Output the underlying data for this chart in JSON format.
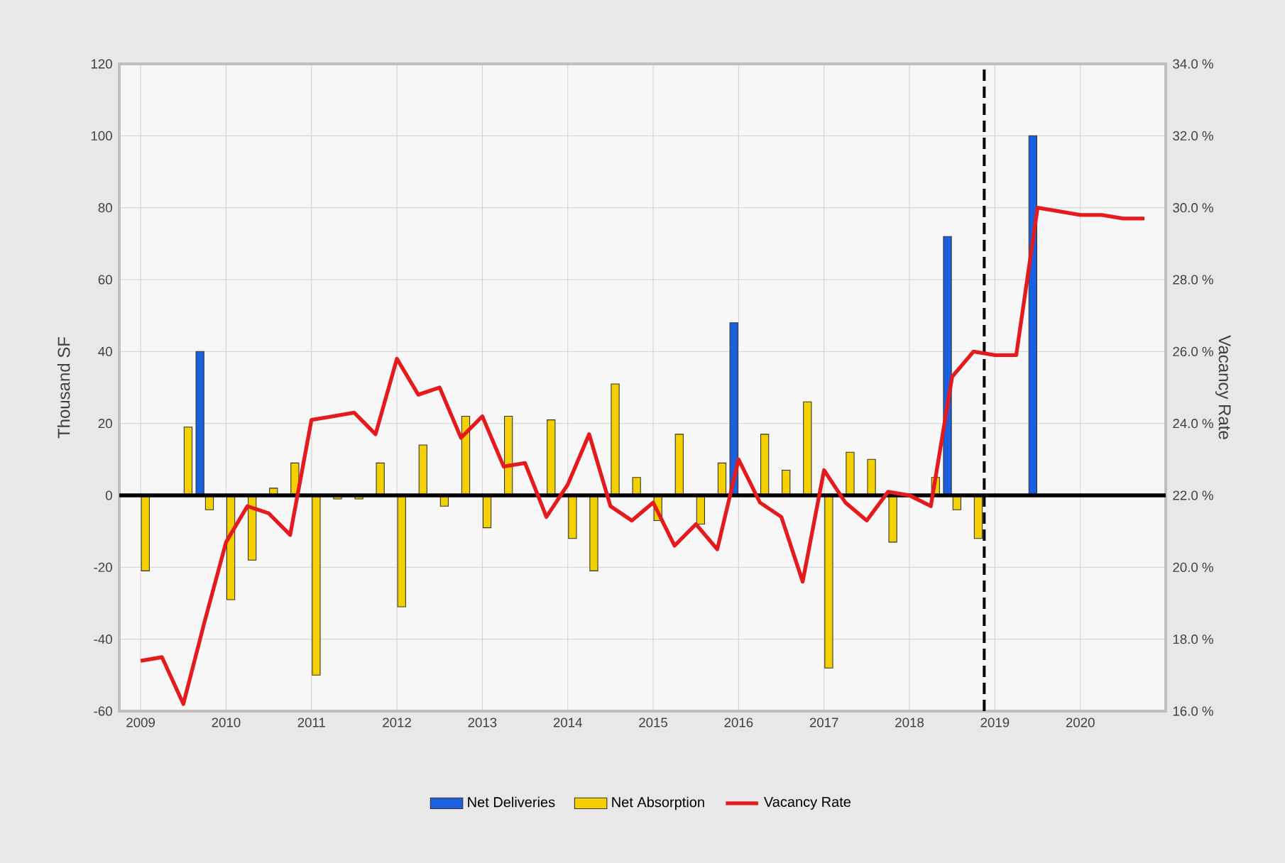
{
  "chart_data": {
    "type": "bar",
    "x": [
      2009,
      2009.25,
      2009.5,
      2009.75,
      2010,
      2010.25,
      2010.5,
      2010.75,
      2011,
      2011.25,
      2011.5,
      2011.75,
      2012,
      2012.25,
      2012.5,
      2012.75,
      2013,
      2013.25,
      2013.5,
      2013.75,
      2014,
      2014.25,
      2014.5,
      2014.75,
      2015,
      2015.25,
      2015.5,
      2015.75,
      2016,
      2016.25,
      2016.5,
      2016.75,
      2017,
      2017.25,
      2017.5,
      2017.75,
      2018,
      2018.25,
      2018.5,
      2018.75,
      2019,
      2019.25,
      2019.5,
      2019.75,
      2020,
      2020.25,
      2020.5,
      2020.75
    ],
    "xlim": [
      2008.75,
      2021
    ],
    "xticks": [
      2009,
      2010,
      2011,
      2012,
      2013,
      2014,
      2015,
      2016,
      2017,
      2018,
      2019,
      2020
    ],
    "ylim": [
      -60,
      120
    ],
    "yticks": [
      -60,
      -40,
      -20,
      0,
      20,
      40,
      60,
      80,
      100,
      120
    ],
    "y2lim": [
      16,
      34
    ],
    "y2ticks": [
      {
        "value": 16,
        "label": "16.0 %"
      },
      {
        "value": 18,
        "label": "18.0 %"
      },
      {
        "value": 20,
        "label": "20.0 %"
      },
      {
        "value": 22,
        "label": "22.0 %"
      },
      {
        "value": 24,
        "label": "24.0 %"
      },
      {
        "value": 26,
        "label": "26.0 %"
      },
      {
        "value": 28,
        "label": "28.0 %"
      },
      {
        "value": 30,
        "label": "30.0 %"
      },
      {
        "value": 32,
        "label": "32.0 %"
      },
      {
        "value": 34,
        "label": "34.0 %"
      }
    ],
    "ylabel": "Thousand SF",
    "y2label": "Vacancy Rate",
    "series": [
      {
        "name": "Net Deliveries",
        "color": "#1a5fe0",
        "values": [
          null,
          null,
          null,
          40,
          null,
          null,
          null,
          null,
          null,
          null,
          null,
          null,
          null,
          null,
          null,
          null,
          null,
          null,
          null,
          null,
          null,
          null,
          null,
          null,
          null,
          null,
          null,
          null,
          48,
          null,
          null,
          null,
          null,
          null,
          null,
          null,
          null,
          null,
          72,
          null,
          null,
          null,
          100,
          null,
          null,
          null,
          null,
          null
        ]
      },
      {
        "name": "Net Absorption",
        "color": "#f5d000",
        "values": [
          -21,
          null,
          19,
          -4,
          -29,
          -18,
          2,
          9,
          -50,
          -1,
          -1,
          9,
          -31,
          14,
          -3,
          22,
          -9,
          22,
          null,
          21,
          -12,
          -21,
          31,
          5,
          -7,
          17,
          -8,
          9,
          null,
          17,
          7,
          26,
          -48,
          12,
          10,
          -13,
          null,
          5,
          -4,
          -12,
          null,
          null,
          null,
          null,
          null,
          null,
          null,
          null
        ]
      },
      {
        "name": "Vacancy Rate",
        "type": "line",
        "axis": "y2",
        "color": "#e41a1c",
        "values": [
          17.4,
          17.5,
          16.2,
          18.5,
          20.7,
          21.7,
          21.5,
          20.9,
          24.1,
          24.2,
          24.3,
          23.7,
          25.8,
          24.8,
          25.0,
          23.6,
          24.2,
          22.8,
          22.9,
          21.4,
          22.3,
          23.7,
          21.7,
          21.3,
          21.8,
          20.6,
          21.2,
          20.5,
          23.0,
          21.8,
          21.4,
          19.6,
          22.7,
          21.8,
          21.3,
          22.1,
          22.0,
          21.7,
          25.3,
          26.0,
          25.9,
          25.9,
          30.0,
          29.9,
          29.8,
          29.8,
          29.7,
          29.7
        ]
      }
    ],
    "ref_lines": [
      {
        "axis": "y",
        "value": 0,
        "color": "#000000",
        "line_style": "solid"
      },
      {
        "axis": "x",
        "value": 2018.875,
        "color": "#000000",
        "line_style": "dashed"
      }
    ],
    "grid": true,
    "legend": "bottom"
  }
}
